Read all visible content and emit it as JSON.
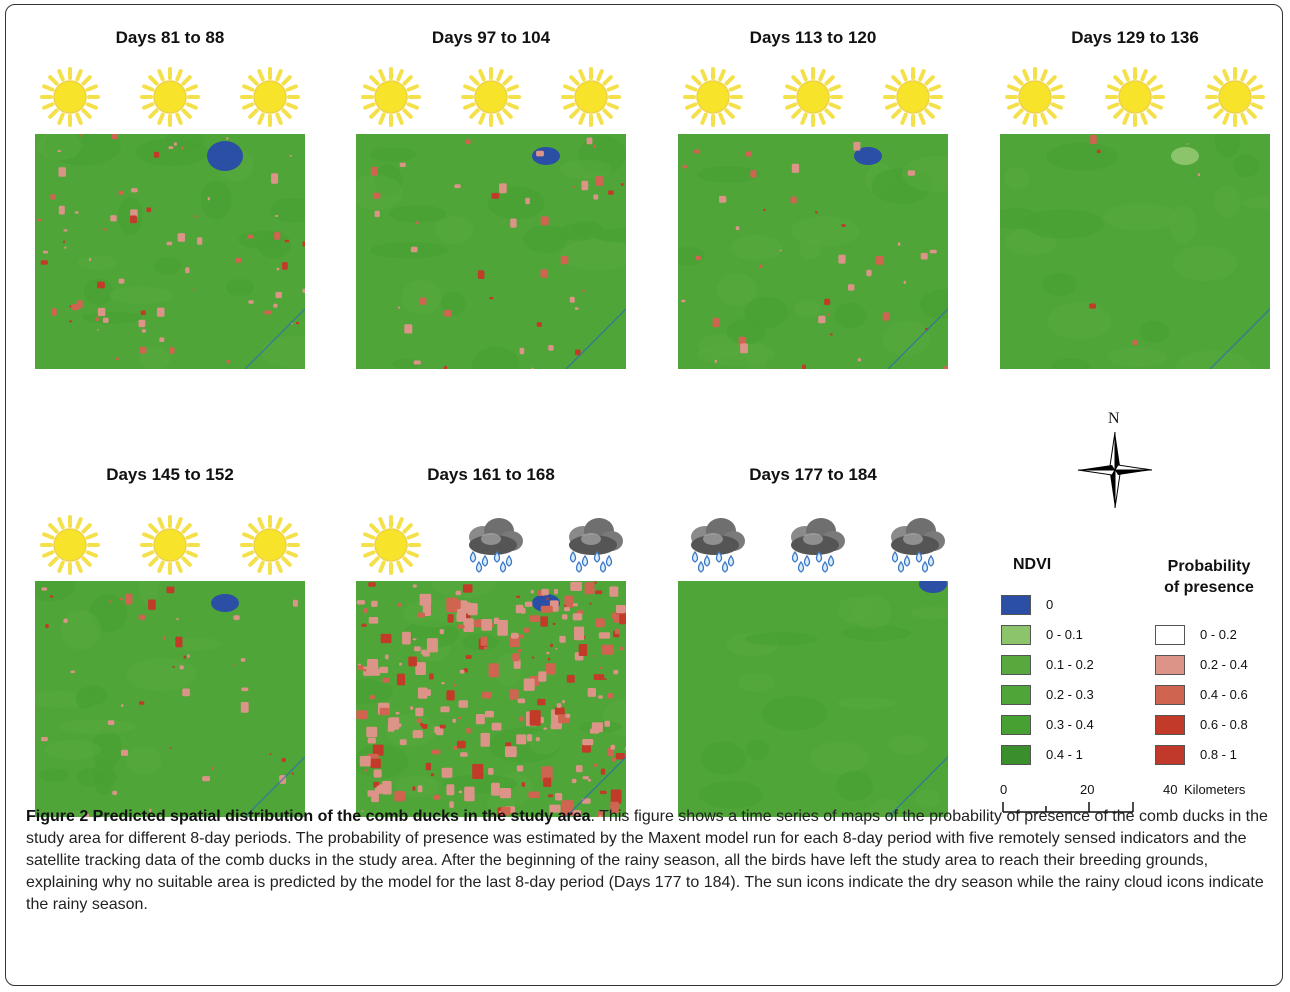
{
  "figure": {
    "panels": [
      {
        "title": "Days 81 to 88",
        "weather": [
          "sun-icon",
          "sun-icon",
          "sun-icon"
        ],
        "presence_level": "moderate"
      },
      {
        "title": "Days 97 to 104",
        "weather": [
          "sun-icon",
          "sun-icon",
          "sun-icon"
        ],
        "presence_level": "low-moderate"
      },
      {
        "title": "Days 113 to 120",
        "weather": [
          "sun-icon",
          "sun-icon",
          "sun-icon"
        ],
        "presence_level": "low-moderate"
      },
      {
        "title": "Days 129 to 136",
        "weather": [
          "sun-icon",
          "sun-icon",
          "sun-icon"
        ],
        "presence_level": "very low"
      },
      {
        "title": "Days 145 to 152",
        "weather": [
          "sun-icon",
          "sun-icon",
          "sun-icon"
        ],
        "presence_level": "low-moderate"
      },
      {
        "title": "Days 161 to 168",
        "weather": [
          "sun-icon",
          "rain-cloud-icon",
          "rain-cloud-icon"
        ],
        "presence_level": "high"
      },
      {
        "title": "Days 177 to 184",
        "weather": [
          "rain-cloud-icon",
          "rain-cloud-icon",
          "rain-cloud-icon"
        ],
        "presence_level": "none"
      }
    ],
    "compass": {
      "label": "N"
    },
    "legend": {
      "ndvi_title": "NDVI",
      "ndvi_items": [
        {
          "label": "0",
          "color": "#2a4fa5"
        },
        {
          "label": "0 - 0.1",
          "color": "#8bc46a"
        },
        {
          "label": "0.1 - 0.2",
          "color": "#57a93d"
        },
        {
          "label": "0.2 - 0.3",
          "color": "#4fa537"
        },
        {
          "label": "0.3 - 0.4",
          "color": "#47a032"
        },
        {
          "label": "0.4 - 1",
          "color": "#3a8e2c"
        }
      ],
      "presence_title_line1": "Probability",
      "presence_title_line2": "of presence",
      "presence_items": [
        {
          "label": "0 - 0.2",
          "color": "#ffffff"
        },
        {
          "label": "0.2 - 0.4",
          "color": "#dd9488"
        },
        {
          "label": "0.4 - 0.6",
          "color": "#cf6450"
        },
        {
          "label": "0.6 - 0.8",
          "color": "#c23a28"
        },
        {
          "label": "0.8 - 1",
          "color": "#c0392b"
        }
      ]
    },
    "scale": {
      "labels": [
        "0",
        "20",
        "40"
      ],
      "unit": "Kilometers"
    }
  },
  "caption": {
    "label": "Figure 2 Predicted spatial distribution of the comb ducks in the study area",
    "text": ". This figure shows a time series of maps of the probability of presence of the comb ducks in the study area for different 8-day periods. The probability of presence was estimated by the Maxent model run for each 8-day period with five remotely sensed indicators and the satellite tracking data of the comb ducks in the study area. After the beginning of the rainy season, all the birds have left the study area to reach their breeding grounds, explaining why no suitable area is predicted by the model for the last 8-day period (Days 177 to 184). The sun icons indicate the dry season while the rainy cloud icons indicate the rainy season."
  }
}
